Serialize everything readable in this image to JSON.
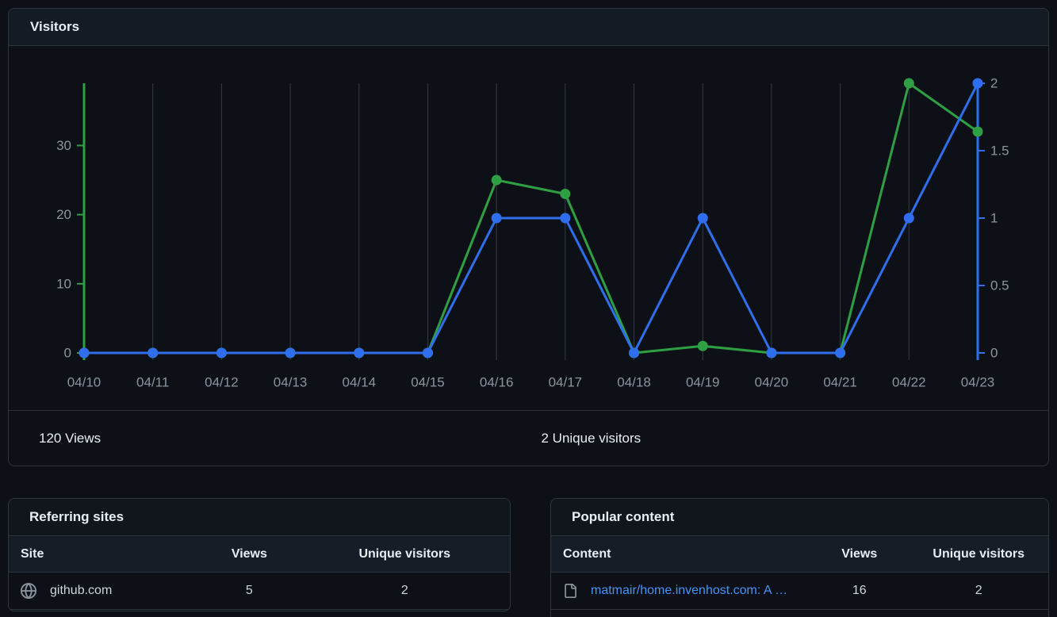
{
  "visitors": {
    "title": "Visitors",
    "views_total": "120 Views",
    "unique_total": "2 Unique visitors"
  },
  "chart_data": {
    "type": "line",
    "title": "Visitors",
    "x_labels": [
      "04/10",
      "04/11",
      "04/12",
      "04/13",
      "04/14",
      "04/15",
      "04/16",
      "04/17",
      "04/18",
      "04/19",
      "04/20",
      "04/21",
      "04/22",
      "04/23"
    ],
    "series": [
      {
        "name": "Views",
        "axis": "left",
        "color": "#2ea043",
        "values": [
          0,
          0,
          0,
          0,
          0,
          0,
          25,
          23,
          0,
          1,
          0,
          0,
          39,
          32
        ]
      },
      {
        "name": "Unique visitors",
        "axis": "right",
        "color": "#2f6fed",
        "values": [
          0,
          0,
          0,
          0,
          0,
          0,
          1,
          1,
          0,
          1,
          0,
          0,
          1,
          2
        ]
      }
    ],
    "left_axis": {
      "ticks": [
        0,
        10,
        20,
        30
      ],
      "max": 39
    },
    "right_axis": {
      "ticks": [
        0,
        0.5,
        1,
        1.5,
        2
      ],
      "max": 2
    },
    "grid": true,
    "grid_color": "#343b44",
    "tick_label_color": "#8b949e"
  },
  "referring_sites": {
    "title": "Referring sites",
    "columns": [
      "Site",
      "Views",
      "Unique visitors"
    ],
    "rows": [
      {
        "site": "github.com",
        "views": "5",
        "unique_visitors": "2",
        "icon": "globe-icon"
      }
    ]
  },
  "popular_content": {
    "title": "Popular content",
    "columns": [
      "Content",
      "Views",
      "Unique visitors"
    ],
    "rows": [
      {
        "content": "matmair/home.invenhost.com: A …",
        "views": "16",
        "unique_visitors": "2",
        "icon": "file-icon",
        "link_color": "#4493f8"
      }
    ]
  }
}
